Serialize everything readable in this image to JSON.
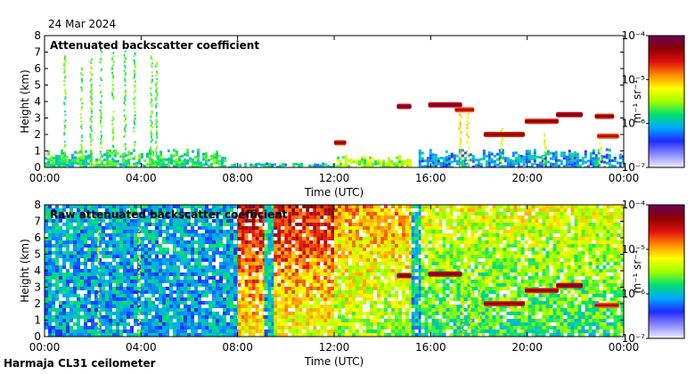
{
  "header": {
    "date": "24 Mar 2024"
  },
  "footer": {
    "instrument": "Harmaja CL31 ceilometer"
  },
  "colors": {
    "panel_bg": "#ffffff",
    "noise_blue": "#2838d8",
    "cbar_stops": [
      "#f0f0ff",
      "#8a8aff",
      "#1f2bff",
      "#00a8ff",
      "#00e070",
      "#a0ff00",
      "#ffff00",
      "#ff8c00",
      "#e01010",
      "#8b0000",
      "#6a005a"
    ]
  },
  "chart_data": [
    {
      "type": "heatmap",
      "title": "Attenuated backscatter coefficient",
      "xlabel": "Time (UTC)",
      "ylabel": "Height (km)",
      "xticks": [
        "00:00",
        "04:00",
        "08:00",
        "12:00",
        "16:00",
        "20:00",
        "00:00"
      ],
      "xlim_hours": [
        0,
        24
      ],
      "yticks": [
        "0",
        "1",
        "2",
        "3",
        "4",
        "5",
        "6",
        "7",
        "8"
      ],
      "ylim_km": [
        0,
        8
      ],
      "colorbar": {
        "label": "m⁻¹ sr⁻¹",
        "ticks": [
          "10⁻⁷",
          "10⁻⁶",
          "10⁻⁵",
          "10⁻⁴"
        ],
        "scale": "log",
        "range": [
          1e-07,
          0.0001
        ]
      },
      "layers": [
        {
          "from_h": 0.0,
          "to_h": 7.5,
          "top_km": 0.9,
          "level": 0.4
        },
        {
          "from_h": 7.5,
          "to_h": 12.0,
          "top_km": 0.25,
          "level": 0.35
        },
        {
          "from_h": 12.0,
          "to_h": 15.2,
          "top_km": 0.6,
          "level": 0.5
        },
        {
          "from_h": 15.5,
          "to_h": 24.0,
          "top_km": 0.9,
          "level": 0.3
        }
      ],
      "streaks": [
        {
          "t_h": 0.8,
          "top_km": 6.8,
          "level": 0.45
        },
        {
          "t_h": 1.5,
          "top_km": 6.2,
          "level": 0.45
        },
        {
          "t_h": 1.9,
          "top_km": 6.6,
          "level": 0.45
        },
        {
          "t_h": 2.3,
          "top_km": 7.3,
          "level": 0.45
        },
        {
          "t_h": 2.8,
          "top_km": 7.0,
          "level": 0.45
        },
        {
          "t_h": 3.3,
          "top_km": 7.2,
          "level": 0.45
        },
        {
          "t_h": 3.7,
          "top_km": 7.0,
          "level": 0.45
        },
        {
          "t_h": 4.4,
          "top_km": 6.8,
          "level": 0.45
        },
        {
          "t_h": 4.6,
          "top_km": 6.4,
          "level": 0.45
        }
      ],
      "cloud_segments": [
        {
          "t0_h": 12.0,
          "t1_h": 12.5,
          "h_km": 1.5,
          "level": 0.88
        },
        {
          "t0_h": 14.6,
          "t1_h": 15.2,
          "h_km": 3.7,
          "level": 0.95
        },
        {
          "t0_h": 15.9,
          "t1_h": 17.3,
          "h_km": 3.8,
          "level": 0.95
        },
        {
          "t0_h": 17.0,
          "t1_h": 17.8,
          "h_km": 3.5,
          "level": 0.85
        },
        {
          "t0_h": 18.2,
          "t1_h": 19.9,
          "h_km": 2.0,
          "level": 0.9
        },
        {
          "t0_h": 19.9,
          "t1_h": 21.3,
          "h_km": 2.8,
          "level": 0.9
        },
        {
          "t0_h": 21.2,
          "t1_h": 22.3,
          "h_km": 3.2,
          "level": 0.95
        },
        {
          "t0_h": 22.8,
          "t1_h": 23.6,
          "h_km": 3.1,
          "level": 0.9
        },
        {
          "t0_h": 22.9,
          "t1_h": 23.8,
          "h_km": 1.9,
          "level": 0.85
        }
      ],
      "precip": [
        {
          "t_h": 17.2,
          "top_km": 3.5,
          "level": 0.62
        },
        {
          "t_h": 17.5,
          "top_km": 3.3,
          "level": 0.62
        },
        {
          "t_h": 18.9,
          "top_km": 2.5,
          "level": 0.58
        },
        {
          "t_h": 20.7,
          "top_km": 2.4,
          "level": 0.58
        },
        {
          "t_h": 23.0,
          "top_km": 1.5,
          "level": 0.58
        }
      ]
    },
    {
      "type": "heatmap",
      "title": "Raw attenuated backscatter coefficient",
      "xlabel": "Time (UTC)",
      "ylabel": "Height (km)",
      "xticks": [
        "00:00",
        "04:00",
        "08:00",
        "12:00",
        "16:00",
        "20:00",
        "00:00"
      ],
      "xlim_hours": [
        0,
        24
      ],
      "yticks": [
        "0",
        "1",
        "2",
        "3",
        "4",
        "5",
        "6",
        "7",
        "8"
      ],
      "ylim_km": [
        0,
        8
      ],
      "colorbar": {
        "label": "m⁻¹ sr⁻¹",
        "ticks": [
          "10⁻⁷",
          "10⁻⁶",
          "10⁻⁵",
          "10⁻⁴"
        ],
        "scale": "log",
        "range": [
          1e-07,
          0.0001
        ]
      },
      "background_periods": [
        {
          "from_h": 0.0,
          "to_h": 8.0,
          "level_low": 0.3,
          "level_high": 0.32
        },
        {
          "from_h": 8.0,
          "to_h": 9.1,
          "level_low": 0.6,
          "level_high": 0.85
        },
        {
          "from_h": 9.1,
          "to_h": 9.5,
          "level_low": 0.32,
          "level_high": 0.38
        },
        {
          "from_h": 9.5,
          "to_h": 12.0,
          "level_low": 0.55,
          "level_high": 0.82
        },
        {
          "from_h": 12.0,
          "to_h": 15.2,
          "level_low": 0.5,
          "level_high": 0.68
        },
        {
          "from_h": 15.2,
          "to_h": 15.6,
          "level_low": 0.32,
          "level_high": 0.34
        },
        {
          "from_h": 15.6,
          "to_h": 24.0,
          "level_low": 0.4,
          "level_high": 0.58
        }
      ],
      "streaks": [
        {
          "t_h": 2.2,
          "top_km": 7.0,
          "level": 0.55
        },
        {
          "t_h": 3.9,
          "top_km": 7.2,
          "level": 0.55
        }
      ],
      "cloud_segments": [
        {
          "t0_h": 14.6,
          "t1_h": 15.2,
          "h_km": 3.7,
          "level": 0.95
        },
        {
          "t0_h": 15.9,
          "t1_h": 17.3,
          "h_km": 3.8,
          "level": 0.95
        },
        {
          "t0_h": 18.2,
          "t1_h": 19.9,
          "h_km": 2.0,
          "level": 0.9
        },
        {
          "t0_h": 19.9,
          "t1_h": 21.3,
          "h_km": 2.8,
          "level": 0.9
        },
        {
          "t0_h": 21.2,
          "t1_h": 22.3,
          "h_km": 3.1,
          "level": 0.95
        },
        {
          "t0_h": 22.8,
          "t1_h": 23.8,
          "h_km": 1.9,
          "level": 0.85
        }
      ],
      "precip": [
        {
          "t_h": 17.3,
          "top_km": 3.6,
          "level": 0.62
        },
        {
          "t_h": 17.6,
          "top_km": 3.5,
          "level": 0.62
        },
        {
          "t_h": 18.0,
          "top_km": 3.0,
          "level": 0.6
        }
      ]
    }
  ]
}
